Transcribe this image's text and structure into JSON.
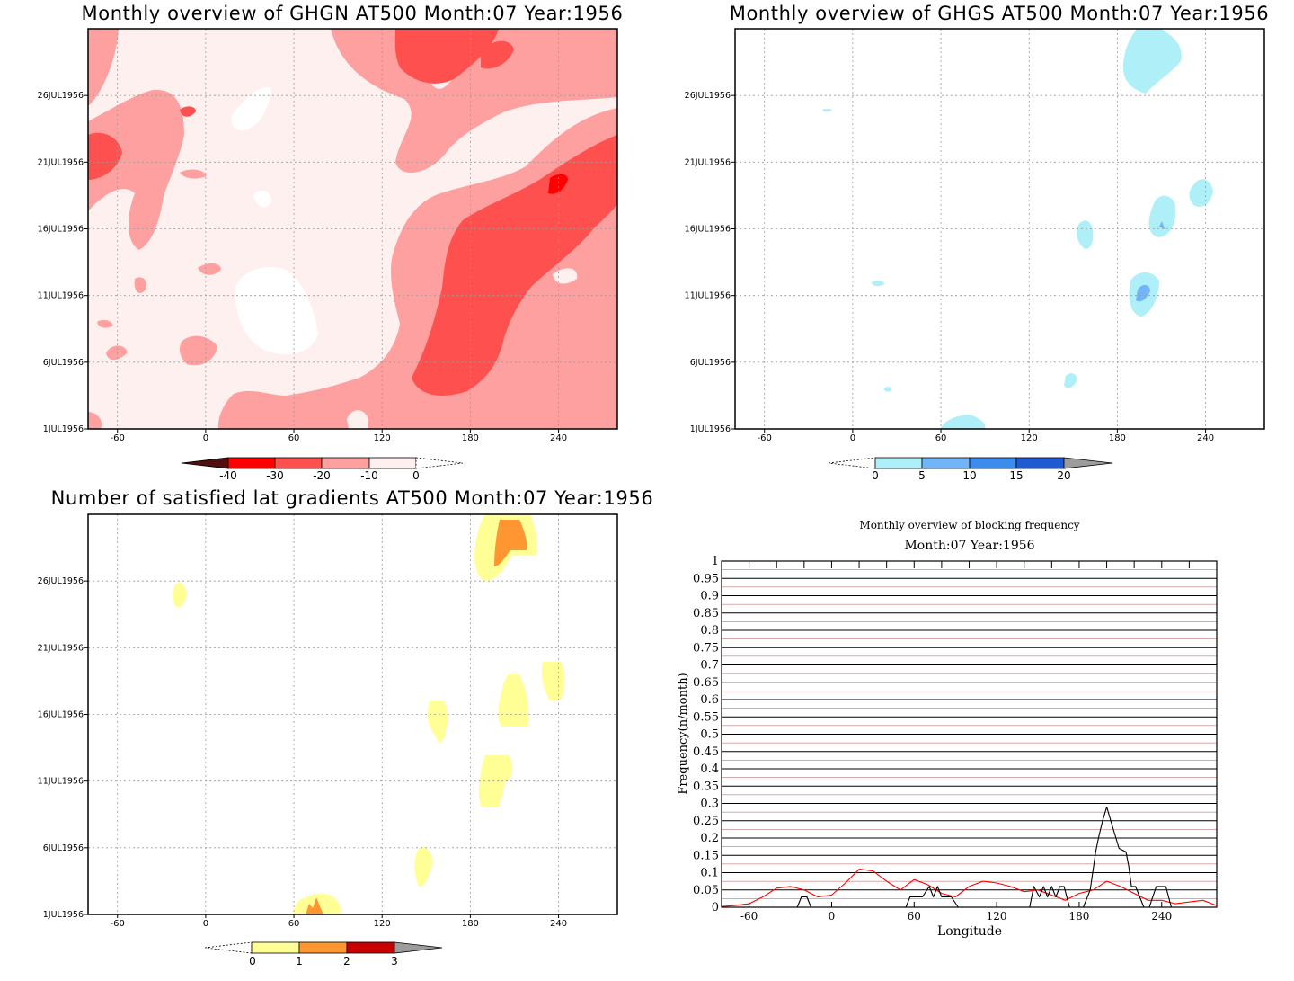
{
  "colors": {
    "red_levels": [
      "#fff0f0",
      "#ffa0a0",
      "#ff5050",
      "#ff0000",
      "#b00000",
      "#501010"
    ],
    "blue_levels": [
      "#aff0f8",
      "#72b4f8",
      "#3c8cf0",
      "#1e5ad2"
    ],
    "yellow_levels": [
      "#ffff96",
      "#ff9632",
      "#c80000"
    ],
    "ref_line": "#b05050",
    "monthly_line": "#ff0000",
    "daily_line": "#000000"
  },
  "chart_data": [
    {
      "type": "heatmap",
      "title": "Monthly overview of GHGN AT500 Month:07 Year:1956",
      "xticks": [
        "-60",
        "0",
        "60",
        "120",
        "180",
        "240"
      ],
      "yticks": [
        "1JUL1956",
        "6JUL1956",
        "11JUL1956",
        "16JUL1956",
        "21JUL1956",
        "26JUL1956"
      ],
      "xlim": [
        -80,
        280
      ],
      "ylim": [
        1,
        31
      ],
      "grid": true,
      "colorbar": {
        "labels": [
          "-40",
          "-30",
          "-20",
          "-10",
          "0"
        ]
      }
    },
    {
      "type": "heatmap",
      "title": "Monthly overview of GHGS AT500 Month:07 Year:1956",
      "xticks": [
        "-60",
        "0",
        "60",
        "120",
        "180",
        "240"
      ],
      "yticks": [
        "1JUL1956",
        "6JUL1956",
        "11JUL1956",
        "16JUL1956",
        "21JUL1956",
        "26JUL1956"
      ],
      "xlim": [
        -80,
        280
      ],
      "ylim": [
        1,
        31
      ],
      "grid": true,
      "colorbar": {
        "labels": [
          "0",
          "5",
          "10",
          "15",
          "20"
        ]
      }
    },
    {
      "type": "heatmap",
      "title": "Number of satisfied lat gradients AT500 Month:07 Year:1956",
      "xticks": [
        "-60",
        "0",
        "60",
        "120",
        "180",
        "240"
      ],
      "yticks": [
        "1JUL1956",
        "6JUL1956",
        "11JUL1956",
        "16JUL1956",
        "21JUL1956",
        "26JUL1956"
      ],
      "xlim": [
        -80,
        280
      ],
      "ylim": [
        1,
        31
      ],
      "grid": true,
      "colorbar": {
        "labels": [
          "0",
          "1",
          "2",
          "3"
        ]
      }
    },
    {
      "type": "line",
      "title": "Monthly overview of blocking frequency",
      "subtitle": "Month:07 Year:1956",
      "xlabel": "Longitude",
      "ylabel": "Frequency(n/month)",
      "xlim": [
        -80,
        280
      ],
      "ylim": [
        0,
        1
      ],
      "xticks": [
        "-60",
        "0",
        "60",
        "120",
        "180",
        "240"
      ],
      "yticks": [
        "0",
        "0.05",
        "0.1",
        "0.15",
        "0.2",
        "0.25",
        "0.3",
        "0.35",
        "0.4",
        "0.45",
        "0.5",
        "0.55",
        "0.6",
        "0.65",
        "0.7",
        "0.75",
        "0.8",
        "0.85",
        "0.9",
        "0.95",
        "1"
      ],
      "series": [
        {
          "x": [
            -80,
            -70,
            -60,
            -50,
            -40,
            -30,
            -20,
            -10,
            0,
            10,
            20,
            30,
            40,
            50,
            60,
            70,
            80,
            90,
            100,
            110,
            120,
            130,
            140,
            150,
            160,
            170,
            180,
            190,
            200,
            210,
            220,
            230,
            240,
            250,
            260,
            270,
            280
          ],
          "values": [
            0.002,
            0.005,
            0.01,
            0.03,
            0.055,
            0.06,
            0.05,
            0.03,
            0.035,
            0.07,
            0.11,
            0.105,
            0.075,
            0.05,
            0.08,
            0.065,
            0.04,
            0.03,
            0.06,
            0.075,
            0.07,
            0.06,
            0.045,
            0.05,
            0.035,
            0.02,
            0.04,
            0.05,
            0.075,
            0.06,
            0.04,
            0.02,
            0.02,
            0.01,
            0.015,
            0.02,
            0.005
          ]
        },
        {
          "x": [
            -80,
            -25,
            -22,
            -18,
            -15,
            -12,
            54,
            57,
            66,
            71,
            74,
            77,
            80,
            84,
            87,
            92,
            144,
            147,
            151,
            154,
            157,
            160,
            163,
            166,
            169,
            173,
            177,
            183,
            188,
            192,
            194,
            197,
            200,
            203,
            206,
            209,
            214,
            216,
            218,
            221,
            224,
            227,
            229,
            231,
            236,
            239,
            243,
            245,
            247,
            280
          ],
          "values": [
            0,
            0,
            0.03,
            0.03,
            0,
            0,
            0,
            0.03,
            0.03,
            0.06,
            0.03,
            0.06,
            0.03,
            0.03,
            0.03,
            0,
            0,
            0.06,
            0.03,
            0.06,
            0.03,
            0.06,
            0.03,
            0.06,
            0.06,
            0,
            0,
            0,
            0.05,
            0.16,
            0.2,
            0.25,
            0.29,
            0.25,
            0.21,
            0.17,
            0.16,
            0.12,
            0.06,
            0.06,
            0.03,
            0,
            0,
            0,
            0.06,
            0.06,
            0.06,
            0.03,
            0,
            0
          ]
        }
      ]
    }
  ]
}
